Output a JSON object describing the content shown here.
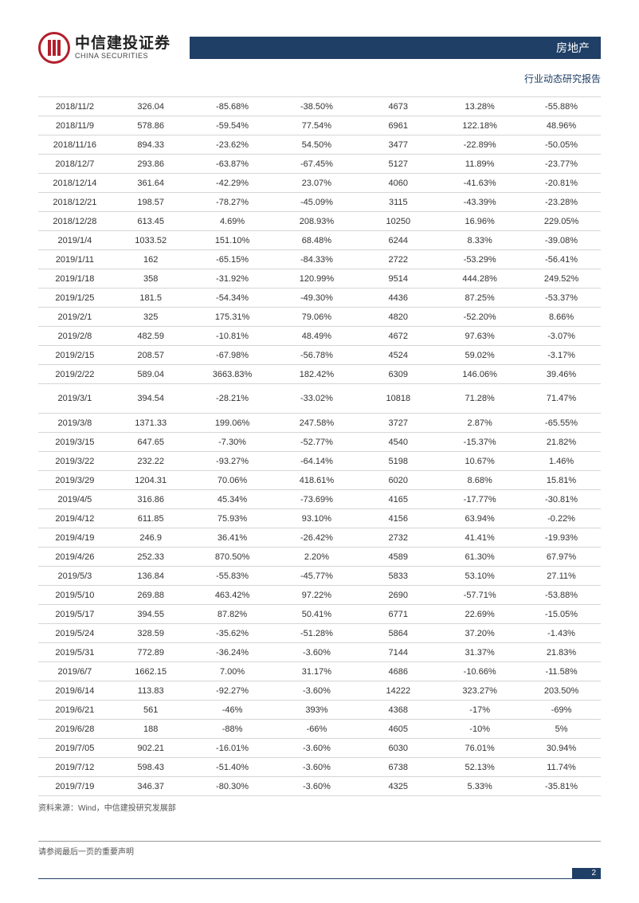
{
  "header": {
    "logo_glyph": "CITIC",
    "company_cn": "中信建投证券",
    "company_en": "CHINA SECURITIES",
    "sector": "房地产",
    "subtitle": "行业动态研究报告"
  },
  "table": {
    "type": "table",
    "text_color": "#333333",
    "border_color": "#d6d6d6",
    "font_size": 11,
    "columns": [
      "date",
      "val1",
      "pct1",
      "pct2",
      "val2",
      "pct3",
      "pct4"
    ],
    "rows": [
      [
        "2018/11/2",
        "326.04",
        "-85.68%",
        "-38.50%",
        "4673",
        "13.28%",
        "-55.88%"
      ],
      [
        "2018/11/9",
        "578.86",
        "-59.54%",
        "77.54%",
        "6961",
        "122.18%",
        "48.96%"
      ],
      [
        "2018/11/16",
        "894.33",
        "-23.62%",
        "54.50%",
        "3477",
        "-22.89%",
        "-50.05%"
      ],
      [
        "2018/12/7",
        "293.86",
        "-63.87%",
        "-67.45%",
        "5127",
        "11.89%",
        "-23.77%"
      ],
      [
        "2018/12/14",
        "361.64",
        "-42.29%",
        "23.07%",
        "4060",
        "-41.63%",
        "-20.81%"
      ],
      [
        "2018/12/21",
        "198.57",
        "-78.27%",
        "-45.09%",
        "3115",
        "-43.39%",
        "-23.28%"
      ],
      [
        "2018/12/28",
        "613.45",
        "4.69%",
        "208.93%",
        "10250",
        "16.96%",
        "229.05%"
      ],
      [
        "2019/1/4",
        "1033.52",
        "151.10%",
        "68.48%",
        "6244",
        "8.33%",
        "-39.08%"
      ],
      [
        "2019/1/11",
        "162",
        "-65.15%",
        "-84.33%",
        "2722",
        "-53.29%",
        "-56.41%"
      ],
      [
        "2019/1/18",
        "358",
        "-31.92%",
        "120.99%",
        "9514",
        "444.28%",
        "249.52%"
      ],
      [
        "2019/1/25",
        "181.5",
        "-54.34%",
        "-49.30%",
        "4436",
        "87.25%",
        "-53.37%"
      ],
      [
        "2019/2/1",
        "325",
        "175.31%",
        "79.06%",
        "4820",
        "-52.20%",
        "8.66%"
      ],
      [
        "2019/2/8",
        "482.59",
        "-10.81%",
        "48.49%",
        "4672",
        "97.63%",
        "-3.07%"
      ],
      [
        "2019/2/15",
        "208.57",
        "-67.98%",
        "-56.78%",
        "4524",
        "59.02%",
        "-3.17%"
      ],
      [
        "2019/2/22",
        "589.04",
        "3663.83%",
        "182.42%",
        "6309",
        "146.06%",
        "39.46%"
      ],
      [
        "2019/3/1",
        "394.54",
        "-28.21%",
        "-33.02%",
        "10818",
        "71.28%",
        "71.47%"
      ],
      [
        "2019/3/8",
        "1371.33",
        "199.06%",
        "247.58%",
        "3727",
        "2.87%",
        "-65.55%"
      ],
      [
        "2019/3/15",
        "647.65",
        "-7.30%",
        "-52.77%",
        "4540",
        "-15.37%",
        "21.82%"
      ],
      [
        "2019/3/22",
        "232.22",
        "-93.27%",
        "-64.14%",
        "5198",
        "10.67%",
        "1.46%"
      ],
      [
        "2019/3/29",
        "1204.31",
        "70.06%",
        "418.61%",
        "6020",
        "8.68%",
        "15.81%"
      ],
      [
        "2019/4/5",
        "316.86",
        "45.34%",
        "-73.69%",
        "4165",
        "-17.77%",
        "-30.81%"
      ],
      [
        "2019/4/12",
        "611.85",
        "75.93%",
        "93.10%",
        "4156",
        "63.94%",
        "-0.22%"
      ],
      [
        "2019/4/19",
        "246.9",
        "36.41%",
        "-26.42%",
        "2732",
        "41.41%",
        "-19.93%"
      ],
      [
        "2019/4/26",
        "252.33",
        "870.50%",
        "2.20%",
        "4589",
        "61.30%",
        "67.97%"
      ],
      [
        "2019/5/3",
        "136.84",
        "-55.83%",
        "-45.77%",
        "5833",
        "53.10%",
        "27.11%"
      ],
      [
        "2019/5/10",
        "269.88",
        "463.42%",
        "97.22%",
        "2690",
        "-57.71%",
        "-53.88%"
      ],
      [
        "2019/5/17",
        "394.55",
        "87.82%",
        "50.41%",
        "6771",
        "22.69%",
        "-15.05%"
      ],
      [
        "2019/5/24",
        "328.59",
        "-35.62%",
        "-51.28%",
        "5864",
        "37.20%",
        "-1.43%"
      ],
      [
        "2019/5/31",
        "772.89",
        "-36.24%",
        "-3.60%",
        "7144",
        "31.37%",
        "21.83%"
      ],
      [
        "2019/6/7",
        "1662.15",
        "7.00%",
        "31.17%",
        "4686",
        "-10.66%",
        "-11.58%"
      ],
      [
        "2019/6/14",
        "113.83",
        "-92.27%",
        "-3.60%",
        "14222",
        "323.27%",
        "203.50%"
      ],
      [
        "2019/6/21",
        "561",
        "-46%",
        "393%",
        "4368",
        "-17%",
        "-69%"
      ],
      [
        "2019/6/28",
        "188",
        "-88%",
        "-66%",
        "4605",
        "-10%",
        "5%"
      ],
      [
        "2019/7/05",
        "902.21",
        "-16.01%",
        "-3.60%",
        "6030",
        "76.01%",
        "30.94%"
      ],
      [
        "2019/7/12",
        "598.43",
        "-51.40%",
        "-3.60%",
        "6738",
        "52.13%",
        "11.74%"
      ],
      [
        "2019/7/19",
        "346.37",
        "-80.30%",
        "-3.60%",
        "4325",
        "5.33%",
        "-35.81%"
      ]
    ],
    "tall_row_index": 15
  },
  "source_note": "资料来源：Wind，中信建投研究发展部",
  "footer": {
    "disclaimer": "请参阅最后一页的重要声明",
    "page_number": "2"
  },
  "colors": {
    "brand_red": "#b21f2d",
    "brand_blue": "#1f3f66",
    "text": "#333333",
    "border": "#d6d6d6"
  }
}
